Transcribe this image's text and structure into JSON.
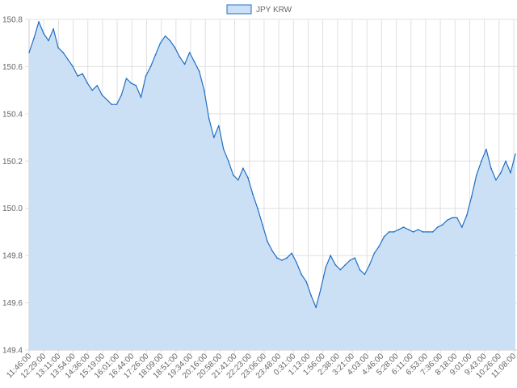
{
  "chart_data": {
    "type": "area",
    "title": "",
    "xlabel": "",
    "ylabel": "",
    "legend": {
      "position": "top-center",
      "entries": [
        "JPY KRW"
      ]
    },
    "grid": true,
    "ylim": [
      149.4,
      150.8
    ],
    "y_ticks": [
      "149.4",
      "149.6",
      "149.8",
      "150.0",
      "150.2",
      "150.4",
      "150.6",
      "150.8"
    ],
    "x_ticks": [
      "11:46:00",
      "12:29:00",
      "13:11:00",
      "13:54:00",
      "14:36:00",
      "15:19:00",
      "16:01:00",
      "16:44:00",
      "17:26:00",
      "18:09:00",
      "18:51:00",
      "19:34:00",
      "20:16:00",
      "20:58:00",
      "21:41:00",
      "22:23:00",
      "23:06:00",
      "23:48:00",
      "0:31:00",
      "1:13:00",
      "1:56:00",
      "2:38:00",
      "3:21:00",
      "4:03:00",
      "4:46:00",
      "5:28:00",
      "6:11:00",
      "6:53:00",
      "7:36:00",
      "8:18:00",
      "9:01:00",
      "9:43:00",
      "10:26:00",
      "11:08:00"
    ],
    "series": [
      {
        "name": "JPY KRW",
        "color": "#1f6fc5",
        "fill": "#cce0f5",
        "values": [
          150.66,
          150.72,
          150.79,
          150.74,
          150.71,
          150.76,
          150.68,
          150.66,
          150.63,
          150.6,
          150.56,
          150.57,
          150.53,
          150.5,
          150.52,
          150.48,
          150.46,
          150.44,
          150.44,
          150.48,
          150.55,
          150.53,
          150.52,
          150.47,
          150.56,
          150.6,
          150.65,
          150.7,
          150.73,
          150.71,
          150.68,
          150.64,
          150.61,
          150.66,
          150.62,
          150.58,
          150.5,
          150.38,
          150.3,
          150.35,
          150.25,
          150.2,
          150.14,
          150.12,
          150.17,
          150.13,
          150.06,
          150.0,
          149.93,
          149.86,
          149.82,
          149.79,
          149.78,
          149.79,
          149.81,
          149.77,
          149.72,
          149.69,
          149.63,
          149.58,
          149.66,
          149.75,
          149.8,
          149.76,
          149.74,
          149.76,
          149.78,
          149.79,
          149.74,
          149.72,
          149.76,
          149.81,
          149.84,
          149.88,
          149.9,
          149.9,
          149.91,
          149.92,
          149.91,
          149.9,
          149.91,
          149.9,
          149.9,
          149.9,
          149.92,
          149.93,
          149.95,
          149.96,
          149.96,
          149.92,
          149.97,
          150.05,
          150.14,
          150.2,
          150.25,
          150.17,
          150.12,
          150.15,
          150.2,
          150.15,
          150.23
        ]
      }
    ]
  }
}
